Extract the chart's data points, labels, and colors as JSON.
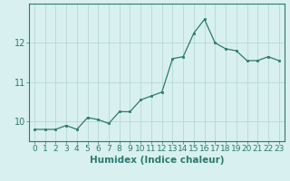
{
  "x": [
    0,
    1,
    2,
    3,
    4,
    5,
    6,
    7,
    8,
    9,
    10,
    11,
    12,
    13,
    14,
    15,
    16,
    17,
    18,
    19,
    20,
    21,
    22,
    23
  ],
  "y": [
    9.8,
    9.8,
    9.8,
    9.9,
    9.8,
    10.1,
    10.05,
    9.95,
    10.25,
    10.25,
    10.55,
    10.65,
    10.75,
    11.6,
    11.65,
    12.25,
    12.6,
    12.0,
    11.85,
    11.8,
    11.55,
    11.55,
    11.65,
    11.55
  ],
  "xlabel": "Humidex (Indice chaleur)",
  "line_color": "#2d7a6e",
  "bg_color": "#d8f0f0",
  "grid_color": "#b8d8d8",
  "tick_labels": [
    "0",
    "1",
    "2",
    "3",
    "4",
    "5",
    "6",
    "7",
    "8",
    "9",
    "10",
    "11",
    "12",
    "13",
    "14",
    "15",
    "16",
    "17",
    "18",
    "19",
    "20",
    "21",
    "22",
    "23"
  ],
  "yticks": [
    10,
    11,
    12
  ],
  "ylim": [
    9.5,
    13.0
  ],
  "xlim": [
    -0.5,
    23.5
  ],
  "xlabel_fontsize": 7.5,
  "tick_fontsize": 6.5
}
